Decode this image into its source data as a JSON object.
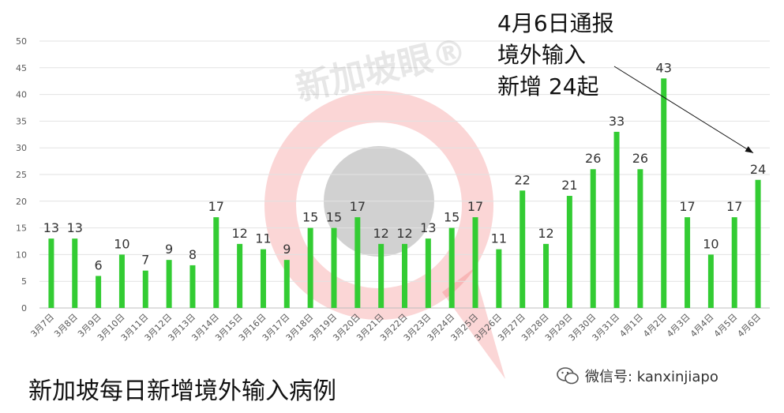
{
  "chart_data": {
    "type": "bar",
    "title": "新加坡每日新增境外输入病例",
    "categories": [
      "3月7日",
      "3月8日",
      "3月9日",
      "3月10日",
      "3月11日",
      "3月12日",
      "3月13日",
      "3月14日",
      "3月15日",
      "3月16日",
      "3月17日",
      "3月18日",
      "3月19日",
      "3月20日",
      "3月21日",
      "3月22日",
      "3月23日",
      "3月24日",
      "3月25日",
      "3月26日",
      "3月27日",
      "3月28日",
      "3月29日",
      "3月30日",
      "3月31日",
      "4月1日",
      "4月2日",
      "4月3日",
      "4月4日",
      "4月5日",
      "4月6日"
    ],
    "values": [
      13,
      13,
      6,
      10,
      7,
      9,
      8,
      17,
      12,
      11,
      9,
      15,
      15,
      17,
      12,
      12,
      13,
      15,
      17,
      11,
      22,
      12,
      21,
      26,
      33,
      26,
      43,
      17,
      10,
      17,
      24
    ],
    "yticks": [
      0,
      5,
      10,
      15,
      20,
      25,
      30,
      35,
      40,
      45,
      50
    ],
    "ylim": [
      0,
      50
    ],
    "grid": true,
    "bar_color": "#33cc33",
    "annotation": "4月6日通报\n境外输入\n新增 24起",
    "annotation_target": "4月6日"
  },
  "watermark": {
    "text": "新加坡眼®",
    "icon": "red-circle-logo"
  },
  "caption": "新加坡每日新增境外输入病例",
  "wechat": {
    "icon": "wechat-icon",
    "text": "微信号: kanxinjiapo"
  }
}
